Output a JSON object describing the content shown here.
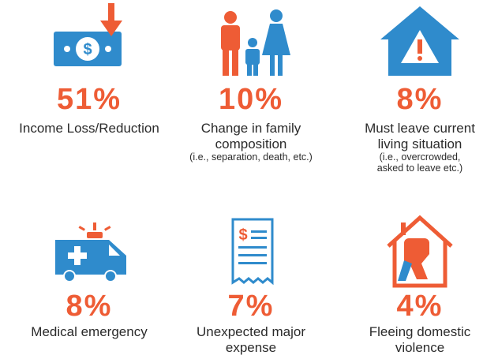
{
  "items": [
    {
      "percent": "51%",
      "label": [
        "Income Loss/Reduction"
      ],
      "note": []
    },
    {
      "percent": "10%",
      "label": [
        "Change in family",
        "composition"
      ],
      "note": [
        "(i.e., separation, death, etc.)"
      ]
    },
    {
      "percent": "8%",
      "label": [
        "Must leave current",
        "living situation"
      ],
      "note": [
        "(i.e., overcrowded,",
        "asked to leave etc.)"
      ]
    },
    {
      "percent": "8%",
      "label": [
        "Medical emergency"
      ],
      "note": []
    },
    {
      "percent": "7%",
      "label": [
        "Unexpected major",
        "expense"
      ],
      "note": []
    },
    {
      "percent": "4%",
      "label": [
        "Fleeing domestic",
        "violence"
      ],
      "note": []
    }
  ]
}
